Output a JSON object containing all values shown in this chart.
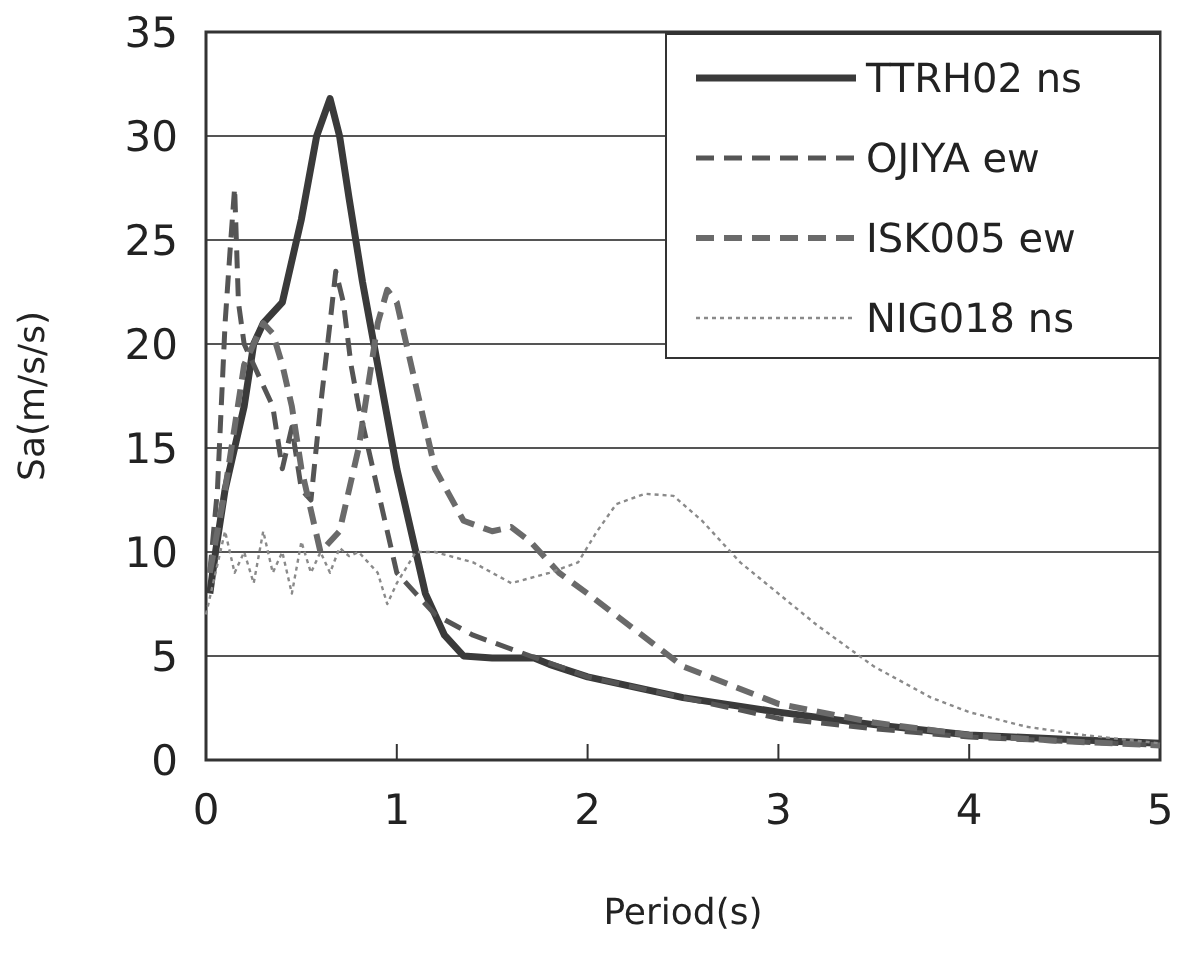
{
  "chart_data": {
    "type": "line",
    "xlabel": "Period(s)",
    "ylabel": "Sa(m/s/s)",
    "xlim": [
      0,
      5
    ],
    "ylim": [
      0,
      35
    ],
    "xticks": [
      0,
      1,
      2,
      3,
      4,
      5
    ],
    "yticks": [
      0,
      5,
      10,
      15,
      20,
      25,
      30,
      35
    ],
    "grid": "y",
    "legend": "top right",
    "series": [
      {
        "name": "TTRH02 ns",
        "color": "#3a3a3a",
        "line_style": "solid",
        "x": [
          0.02,
          0.05,
          0.1,
          0.15,
          0.2,
          0.25,
          0.3,
          0.4,
          0.5,
          0.58,
          0.65,
          0.7,
          0.75,
          0.82,
          0.9,
          1.0,
          1.05,
          1.15,
          1.25,
          1.35,
          1.5,
          1.72,
          1.8,
          2.0,
          2.5,
          3.0,
          3.5,
          4.0,
          4.5,
          5.0
        ],
        "values": [
          8,
          10,
          13,
          15,
          17,
          20,
          21,
          22,
          26,
          30,
          31.8,
          30,
          27,
          23,
          19,
          14,
          12,
          8,
          6,
          5,
          4.9,
          4.9,
          4.6,
          4,
          3,
          2.3,
          1.7,
          1.2,
          1,
          0.8
        ]
      },
      {
        "name": "OJIYA ew",
        "color": "#555555",
        "line_style": "dashed",
        "x": [
          0.02,
          0.06,
          0.1,
          0.13,
          0.15,
          0.17,
          0.2,
          0.25,
          0.3,
          0.35,
          0.4,
          0.45,
          0.5,
          0.55,
          0.6,
          0.65,
          0.68,
          0.72,
          0.76,
          0.8,
          0.85,
          0.9,
          1.0,
          1.1,
          1.2,
          1.4,
          1.7,
          2.0,
          2.5,
          3.0,
          3.5,
          4.0,
          4.5,
          5.0
        ],
        "values": [
          9,
          13,
          21,
          25,
          27.5,
          22,
          20,
          19,
          18,
          17,
          14,
          16,
          13,
          12.5,
          17,
          21,
          23.5,
          22,
          19,
          17,
          15,
          13,
          9,
          8,
          7,
          6,
          5,
          4,
          3,
          2,
          1.5,
          1.1,
          0.9,
          0.7
        ]
      },
      {
        "name": "ISK005 ew",
        "color": "#6a6a6a",
        "line_style": "dashed",
        "x": [
          0.02,
          0.06,
          0.1,
          0.15,
          0.2,
          0.25,
          0.3,
          0.35,
          0.4,
          0.45,
          0.5,
          0.55,
          0.6,
          0.7,
          0.8,
          0.85,
          0.9,
          0.95,
          1.0,
          1.1,
          1.2,
          1.35,
          1.5,
          1.6,
          1.7,
          1.85,
          2.0,
          2.5,
          3.0,
          3.5,
          4.0,
          4.5,
          5.0
        ],
        "values": [
          9,
          11,
          13,
          16,
          19,
          20,
          21,
          20.5,
          19,
          17,
          14,
          12,
          10,
          11,
          15,
          18,
          21,
          22.6,
          22,
          18,
          14,
          11.5,
          11,
          11.2,
          10.5,
          9,
          8,
          4.5,
          2.7,
          1.8,
          1.2,
          0.9,
          0.7
        ]
      },
      {
        "name": "NIG018 ns",
        "color": "#8a8a8a",
        "line_style": "dotted",
        "x": [
          0.0,
          0.05,
          0.1,
          0.15,
          0.2,
          0.25,
          0.3,
          0.35,
          0.4,
          0.45,
          0.5,
          0.55,
          0.6,
          0.65,
          0.7,
          0.75,
          0.8,
          0.85,
          0.9,
          0.95,
          1.0,
          1.1,
          1.2,
          1.4,
          1.6,
          1.8,
          1.95,
          2.05,
          2.15,
          2.3,
          2.45,
          2.6,
          2.8,
          3.0,
          3.2,
          3.5,
          3.8,
          4.0,
          4.3,
          4.6,
          5.0
        ],
        "values": [
          7,
          9,
          11,
          9,
          10,
          8.5,
          11,
          9,
          10,
          8,
          10.5,
          9,
          10,
          9,
          10.2,
          9.8,
          10,
          9.5,
          9,
          7.5,
          8.5,
          10,
          10,
          9.5,
          8.5,
          9,
          9.5,
          11,
          12.3,
          12.8,
          12.7,
          11.5,
          9.5,
          8,
          6.5,
          4.5,
          3,
          2.3,
          1.6,
          1.2,
          0.8
        ]
      }
    ]
  }
}
